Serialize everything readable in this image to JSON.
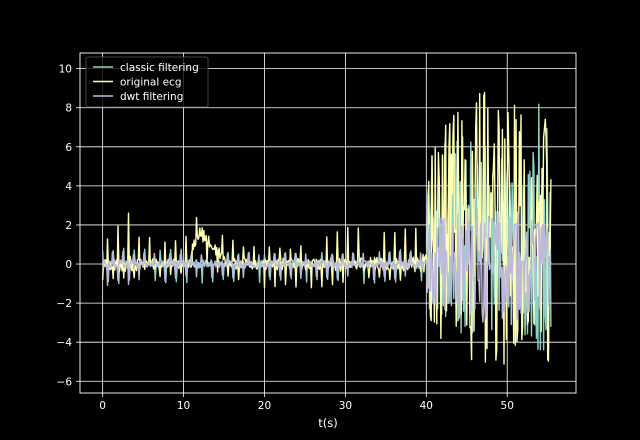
{
  "chart_data": {
    "type": "line",
    "title": "",
    "xlabel": "t(s)",
    "ylabel": "",
    "xlim": [
      -2.8,
      58.5
    ],
    "ylim": [
      -6.6,
      10.8
    ],
    "x_ticks": [
      0,
      10,
      20,
      30,
      40,
      50
    ],
    "y_ticks": [
      -6,
      -4,
      -2,
      0,
      2,
      4,
      6,
      8,
      10
    ],
    "grid": true,
    "legend_position": "upper-left",
    "duration_s": 55.5,
    "series": [
      {
        "name": "classic filtering",
        "color": "#8dd3c7",
        "envelope": [
          [
            0,
            0.9,
            -1.0
          ],
          [
            10,
            0.8,
            -1.0
          ],
          [
            20,
            0.6,
            -1.0
          ],
          [
            30,
            0.6,
            -1.0
          ],
          [
            39.5,
            0.8,
            -1.0
          ],
          [
            40.5,
            5.5,
            -2.5
          ],
          [
            44,
            7.0,
            -3.5
          ],
          [
            48,
            6.5,
            -4.0
          ],
          [
            51,
            4.0,
            -3.0
          ],
          [
            54,
            9.0,
            -5.0
          ],
          [
            55.5,
            8.5,
            -4.5
          ]
        ]
      },
      {
        "name": "original ecg",
        "color": "#ffffb3",
        "envelope": [
          [
            0,
            1.2,
            -1.0
          ],
          [
            3,
            2.8,
            -0.8
          ],
          [
            5,
            1.5,
            -0.8
          ],
          [
            10,
            1.3,
            -0.6
          ],
          [
            12,
            3.3,
            0.5
          ],
          [
            14,
            2.0,
            -0.5
          ],
          [
            18,
            1.0,
            -1.2
          ],
          [
            25,
            1.0,
            -1.5
          ],
          [
            30,
            2.0,
            -1.0
          ],
          [
            35,
            2.0,
            -0.8
          ],
          [
            39.5,
            2.3,
            -1.0
          ],
          [
            40.5,
            6.0,
            -3.5
          ],
          [
            43,
            7.5,
            -4.5
          ],
          [
            47,
            9.0,
            -5.5
          ],
          [
            50,
            10.0,
            -5.5
          ],
          [
            53,
            7.0,
            -4.0
          ],
          [
            55.5,
            8.0,
            -5.5
          ]
        ]
      },
      {
        "name": "dwt filtering",
        "color": "#bebada",
        "envelope": [
          [
            0,
            0.7,
            -1.2
          ],
          [
            10,
            0.5,
            -0.8
          ],
          [
            20,
            0.6,
            -0.7
          ],
          [
            30,
            0.6,
            -0.8
          ],
          [
            39.5,
            0.7,
            -0.8
          ],
          [
            40.5,
            2.5,
            -2.0
          ],
          [
            45,
            3.0,
            -3.0
          ],
          [
            50,
            3.0,
            -3.0
          ],
          [
            55.5,
            2.0,
            -2.5
          ]
        ]
      }
    ]
  }
}
